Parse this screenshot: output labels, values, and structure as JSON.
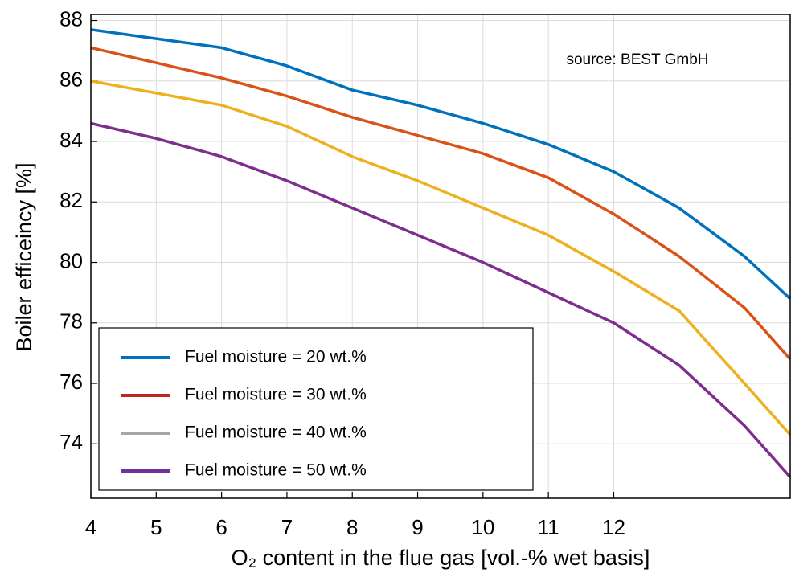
{
  "chart_data": {
    "type": "line",
    "xlabel": "O₂ content in the flue gas [vol.-% wet basis]",
    "ylabel": "Boiler efficeincy [%]",
    "annotation": "source: BEST GmbH",
    "x": [
      4,
      5,
      6,
      7,
      8,
      9,
      10,
      11,
      12,
      13,
      14,
      14.7
    ],
    "series": [
      {
        "name": "Fuel moisture = 20 wt.%",
        "color": "#0072bd",
        "legend_color": "#0072bd",
        "values": [
          87.7,
          87.4,
          87.1,
          86.5,
          85.7,
          85.2,
          84.6,
          83.9,
          83.0,
          81.8,
          80.2,
          78.8
        ]
      },
      {
        "name": "Fuel moisture = 30 wt.%",
        "color": "#d95319",
        "legend_color": "#c0271b",
        "values": [
          87.1,
          86.6,
          86.1,
          85.5,
          84.8,
          84.2,
          83.6,
          82.8,
          81.6,
          80.2,
          78.5,
          76.8
        ]
      },
      {
        "name": "Fuel moisture = 40 wt.%",
        "color": "#edb120",
        "legend_color": "#a6a6a6",
        "values": [
          86.0,
          85.6,
          85.2,
          84.5,
          83.5,
          82.7,
          81.8,
          80.9,
          79.7,
          78.4,
          76.0,
          74.3
        ]
      },
      {
        "name": "Fuel moisture = 50 wt.%",
        "color": "#7e2f8e",
        "legend_color": "#7030a0",
        "values": [
          84.6,
          84.1,
          83.5,
          82.7,
          81.8,
          80.9,
          80.0,
          79.0,
          78.0,
          76.6,
          74.6,
          72.9
        ]
      }
    ],
    "xlim": [
      4,
      14.7
    ],
    "xticks": [
      4,
      5,
      6,
      7,
      8,
      9,
      10,
      11,
      12
    ],
    "ylim": [
      72.2,
      88.2
    ],
    "yticks": [
      74,
      76,
      78,
      80,
      82,
      84,
      86,
      88
    ],
    "grid": true,
    "legend": "lower left"
  }
}
